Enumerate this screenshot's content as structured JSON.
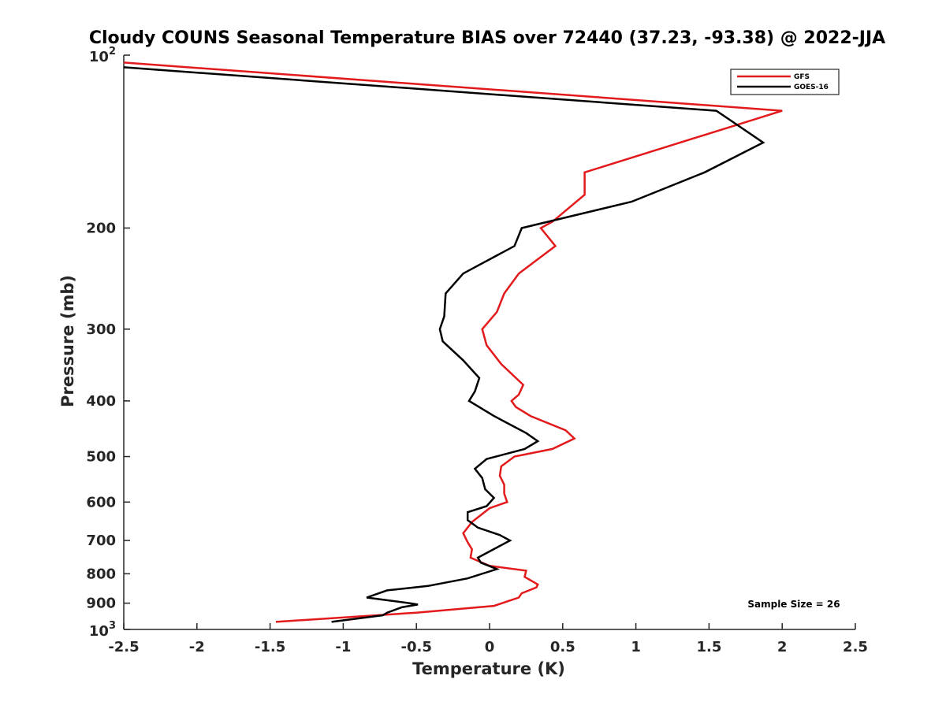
{
  "chart_data": {
    "type": "line",
    "title": "Cloudy COUNS Seasonal Temperature BIAS over 72440 (37.23, -93.38) @ 2022-JJA",
    "xlabel": "Temperature (K)",
    "ylabel": "Pressure (mb)",
    "xlim": [
      -2.5,
      2.5
    ],
    "ylim": [
      100,
      1000
    ],
    "y_scale": "log",
    "y_reversed": true,
    "x_ticks": [
      -2.5,
      -2,
      -1.5,
      -1,
      -0.5,
      0,
      0.5,
      1,
      1.5,
      2,
      2.5
    ],
    "x_tick_labels": [
      "-2.5",
      "-2",
      "-1.5",
      "-1",
      "-0.5",
      "0",
      "0.5",
      "1",
      "1.5",
      "2",
      "2.5"
    ],
    "y_ticks": [
      200,
      300,
      400,
      500,
      600,
      700,
      800,
      900
    ],
    "y_tick_labels": [
      "200",
      "300",
      "400",
      "500",
      "600",
      "700",
      "800",
      "900"
    ],
    "y_end_labels": [
      {
        "value": 100,
        "base": "10",
        "exp": "2"
      },
      {
        "value": 1000,
        "base": "10",
        "exp": "3"
      }
    ],
    "legend_placement": "top-right",
    "annotation": "Sample Size = 26",
    "series": [
      {
        "name": "GFS",
        "color": "#e31a1c",
        "points": [
          [
            -2.5,
            103
          ],
          [
            2.0,
            125
          ],
          [
            0.65,
            160
          ],
          [
            0.65,
            175
          ],
          [
            0.43,
            195
          ],
          [
            0.35,
            200
          ],
          [
            0.45,
            215
          ],
          [
            0.2,
            240
          ],
          [
            0.1,
            260
          ],
          [
            0.05,
            280
          ],
          [
            -0.05,
            300
          ],
          [
            -0.02,
            320
          ],
          [
            0.08,
            345
          ],
          [
            0.23,
            375
          ],
          [
            0.2,
            390
          ],
          [
            0.15,
            400
          ],
          [
            0.18,
            410
          ],
          [
            0.28,
            425
          ],
          [
            0.52,
            450
          ],
          [
            0.58,
            465
          ],
          [
            0.43,
            485
          ],
          [
            0.17,
            500
          ],
          [
            0.08,
            520
          ],
          [
            0.07,
            540
          ],
          [
            0.1,
            560
          ],
          [
            0.1,
            580
          ],
          [
            0.12,
            600
          ],
          [
            0.0,
            615
          ],
          [
            -0.12,
            650
          ],
          [
            -0.18,
            680
          ],
          [
            -0.15,
            705
          ],
          [
            -0.12,
            725
          ],
          [
            -0.13,
            750
          ],
          [
            0.0,
            775
          ],
          [
            0.25,
            790
          ],
          [
            0.24,
            810
          ],
          [
            0.33,
            835
          ],
          [
            0.32,
            845
          ],
          [
            0.22,
            865
          ],
          [
            0.2,
            880
          ],
          [
            0.03,
            910
          ],
          [
            -0.5,
            935
          ],
          [
            -1.46,
            970
          ]
        ]
      },
      {
        "name": "GOES-16",
        "color": "#000000",
        "points": [
          [
            -2.5,
            105
          ],
          [
            1.55,
            125
          ],
          [
            1.65,
            130
          ],
          [
            1.87,
            142
          ],
          [
            1.47,
            160
          ],
          [
            0.97,
            180
          ],
          [
            0.22,
            200
          ],
          [
            0.17,
            215
          ],
          [
            -0.18,
            240
          ],
          [
            -0.3,
            260
          ],
          [
            -0.31,
            285
          ],
          [
            -0.34,
            300
          ],
          [
            -0.32,
            315
          ],
          [
            -0.18,
            340
          ],
          [
            -0.07,
            365
          ],
          [
            -0.1,
            385
          ],
          [
            -0.14,
            400
          ],
          [
            0.03,
            425
          ],
          [
            0.25,
            455
          ],
          [
            0.33,
            470
          ],
          [
            0.24,
            485
          ],
          [
            -0.02,
            505
          ],
          [
            -0.1,
            525
          ],
          [
            -0.05,
            545
          ],
          [
            -0.03,
            570
          ],
          [
            0.03,
            590
          ],
          [
            -0.02,
            610
          ],
          [
            -0.15,
            625
          ],
          [
            -0.15,
            645
          ],
          [
            -0.08,
            665
          ],
          [
            0.07,
            685
          ],
          [
            0.14,
            700
          ],
          [
            0.05,
            720
          ],
          [
            -0.08,
            750
          ],
          [
            -0.06,
            765
          ],
          [
            0.05,
            785
          ],
          [
            -0.15,
            815
          ],
          [
            -0.42,
            840
          ],
          [
            -0.7,
            855
          ],
          [
            -0.84,
            880
          ],
          [
            -0.55,
            900
          ],
          [
            -0.49,
            905
          ],
          [
            -0.6,
            915
          ],
          [
            -0.7,
            935
          ],
          [
            -0.73,
            945
          ],
          [
            -1.08,
            970
          ]
        ]
      }
    ]
  }
}
